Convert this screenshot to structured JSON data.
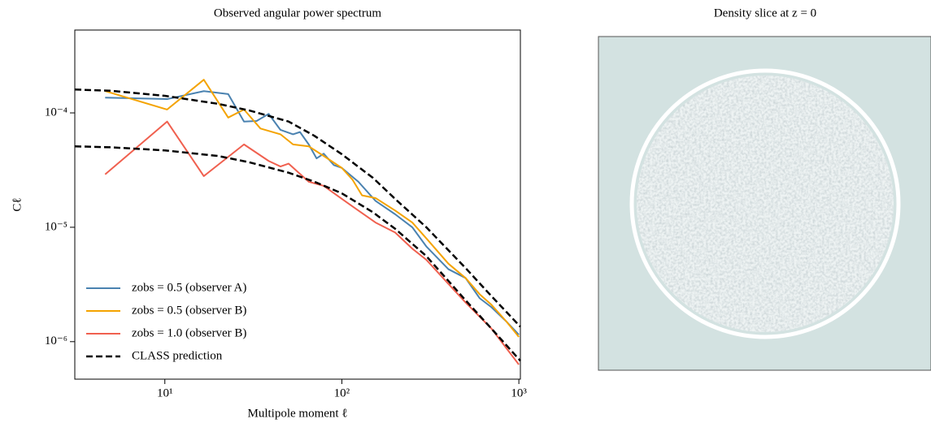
{
  "chart_data": [
    {
      "type": "line",
      "title": "Observed angular power spectrum",
      "xlabel": "Multipole moment ℓ",
      "ylabel": "Cℓ",
      "xscale": "log",
      "yscale": "log",
      "xlim": [
        3.1,
        1020
      ],
      "ylim": [
        4.7e-07,
        0.00053
      ],
      "xticks": [
        {
          "value": 10,
          "label": "10¹"
        },
        {
          "value": 100,
          "label": "10²"
        },
        {
          "value": 1000,
          "label": "10³"
        }
      ],
      "yticks": [
        {
          "value": 1e-06,
          "label": "10⁻⁶"
        },
        {
          "value": 1e-05,
          "label": "10⁻⁵"
        },
        {
          "value": 0.0001,
          "label": "10⁻⁴"
        }
      ],
      "grid": false,
      "legend": "lower left",
      "series": [
        {
          "name": "zobs = 0.5 (observer A)",
          "color": "#4a82b0",
          "x": [
            4.6,
            10.3,
            16.6,
            22.8,
            28,
            33,
            38.6,
            45,
            53,
            58,
            65,
            72,
            79,
            90,
            100,
            124,
            155,
            200,
            250,
            300,
            400,
            500,
            600,
            700,
            850,
            1000
          ],
          "values": [
            0.000136,
            0.000132,
            0.000155,
            0.000146,
            8.4e-05,
            8.5e-05,
            9.8e-05,
            7.1e-05,
            6.5e-05,
            6.8e-05,
            5.3e-05,
            4e-05,
            4.4e-05,
            3.5e-05,
            3.3e-05,
            2.5e-05,
            1.7e-05,
            1.3e-05,
            1e-05,
            6.8e-06,
            4.3e-06,
            3.6e-06,
            2.4e-06,
            2e-06,
            1.5e-06,
            1.15e-06
          ]
        },
        {
          "name": "zobs = 0.5 (observer B)",
          "color": "#f4a300",
          "x": [
            4.6,
            10.3,
            16.6,
            22.8,
            28,
            34.7,
            45,
            53,
            65,
            79,
            100,
            115,
            130,
            155,
            200,
            250,
            300,
            400,
            500,
            600,
            700,
            850,
            1000
          ],
          "values": [
            0.000155,
            0.000107,
            0.000195,
            9.1e-05,
            0.000107,
            7.3e-05,
            6.5e-05,
            5.3e-05,
            5.1e-05,
            4.2e-05,
            3.3e-05,
            2.6e-05,
            1.9e-05,
            1.8e-05,
            1.4e-05,
            1.1e-05,
            8e-06,
            4.8e-06,
            3.6e-06,
            2.6e-06,
            2.1e-06,
            1.5e-06,
            1.1e-06
          ]
        },
        {
          "name": "zobs = 1.0 (observer B)",
          "color": "#f0604f",
          "x": [
            4.6,
            10.3,
            16.6,
            28,
            38.6,
            45,
            50,
            65,
            79,
            100,
            124,
            155,
            200,
            250,
            300,
            400,
            500,
            700,
            1000
          ],
          "values": [
            2.9e-05,
            8.4e-05,
            2.8e-05,
            5.3e-05,
            3.8e-05,
            3.4e-05,
            3.6e-05,
            2.5e-05,
            2.3e-05,
            1.77e-05,
            1.4e-05,
            1.1e-05,
            9e-06,
            6.5e-06,
            5.2e-06,
            3.2e-06,
            2.2e-06,
            1.3e-06,
            6.3e-07
          ]
        },
        {
          "name": "CLASS prediction",
          "color": "#000000",
          "dashed": true,
          "x": [
            3.1,
            5,
            10,
            20,
            30,
            50,
            70,
            100,
            150,
            200,
            300,
            500,
            700,
            1020
          ],
          "values": [
            0.00016,
            0.000156,
            0.000141,
            0.00012,
            0.000105,
            8.4e-05,
            6.3e-05,
            4.35e-05,
            2.7e-05,
            1.77e-05,
            1e-05,
            4.4e-06,
            2.5e-06,
            1.35e-06
          ]
        },
        {
          "color": "#000000",
          "dashed": true,
          "x": [
            3.1,
            5,
            10,
            20,
            30,
            50,
            70,
            100,
            150,
            200,
            300,
            500,
            700,
            1020
          ],
          "values": [
            5.1e-05,
            5e-05,
            4.7e-05,
            4.2e-05,
            3.7e-05,
            3e-05,
            2.5e-05,
            1.98e-05,
            1.35e-05,
            9.7e-06,
            5.6e-06,
            2.3e-06,
            1.3e-06,
            6.8e-07
          ]
        }
      ]
    },
    {
      "type": "image",
      "title": "Density slice at z = 0"
    }
  ]
}
